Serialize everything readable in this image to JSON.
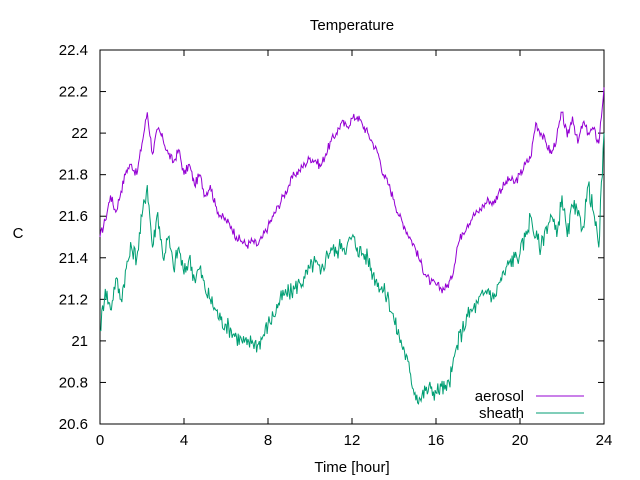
{
  "chart_data": {
    "type": "line",
    "title": "Temperature",
    "xlabel": "Time [hour]",
    "ylabel": "C",
    "xlim": [
      0,
      24
    ],
    "ylim": [
      20.6,
      22.4
    ],
    "xticks": [
      0,
      4,
      8,
      12,
      16,
      20,
      24
    ],
    "yticks": [
      20.6,
      20.8,
      21,
      21.2,
      21.4,
      21.6,
      21.8,
      22,
      22.2,
      22.4
    ],
    "grid": false,
    "legend_position": "bottom-right",
    "series": [
      {
        "name": "aerosol",
        "color": "#9400d3",
        "x": [
          0,
          0.25,
          0.5,
          0.75,
          1,
          1.25,
          1.5,
          1.75,
          2,
          2.25,
          2.5,
          2.75,
          3,
          3.25,
          3.5,
          3.75,
          4,
          4.25,
          4.5,
          4.75,
          5,
          5.25,
          5.5,
          5.75,
          6,
          6.25,
          6.5,
          6.75,
          7,
          7.25,
          7.5,
          7.75,
          8,
          8.25,
          8.5,
          8.75,
          9,
          9.25,
          9.5,
          9.75,
          10,
          10.25,
          10.5,
          10.75,
          11,
          11.25,
          11.5,
          11.75,
          12,
          12.25,
          12.5,
          12.75,
          13,
          13.25,
          13.5,
          13.75,
          14,
          14.25,
          14.5,
          14.75,
          15,
          15.25,
          15.5,
          15.75,
          16,
          16.25,
          16.5,
          16.75,
          17,
          17.25,
          17.5,
          17.75,
          18,
          18.25,
          18.5,
          18.75,
          19,
          19.25,
          19.5,
          19.75,
          20,
          20.25,
          20.5,
          20.75,
          21,
          21.25,
          21.5,
          21.75,
          22,
          22.25,
          22.5,
          22.75,
          23,
          23.25,
          23.5,
          23.75,
          24
        ],
        "y": [
          21.5,
          21.58,
          21.7,
          21.62,
          21.72,
          21.82,
          21.85,
          21.8,
          21.95,
          22.1,
          21.9,
          22.02,
          21.97,
          21.9,
          21.86,
          21.92,
          21.8,
          21.85,
          21.75,
          21.8,
          21.7,
          21.75,
          21.65,
          21.6,
          21.58,
          21.55,
          21.5,
          21.48,
          21.46,
          21.48,
          21.46,
          21.5,
          21.55,
          21.6,
          21.65,
          21.7,
          21.75,
          21.8,
          21.82,
          21.85,
          21.88,
          21.87,
          21.84,
          21.9,
          21.96,
          22.0,
          22.05,
          22.03,
          22.07,
          22.08,
          22.04,
          22.0,
          21.95,
          21.9,
          21.8,
          21.75,
          21.68,
          21.6,
          21.55,
          21.5,
          21.45,
          21.38,
          21.32,
          21.28,
          21.27,
          21.25,
          21.26,
          21.3,
          21.45,
          21.52,
          21.56,
          21.6,
          21.62,
          21.65,
          21.68,
          21.66,
          21.72,
          21.75,
          21.78,
          21.76,
          21.8,
          21.85,
          21.88,
          22.05,
          22.0,
          21.95,
          21.9,
          21.98,
          22.1,
          21.98,
          22.08,
          21.95,
          22.05,
          22.0,
          22.02,
          21.95,
          22.22
        ]
      },
      {
        "name": "sheath",
        "color": "#009e73",
        "x": [
          0,
          0.25,
          0.5,
          0.75,
          1,
          1.25,
          1.5,
          1.75,
          2,
          2.25,
          2.5,
          2.75,
          3,
          3.25,
          3.5,
          3.75,
          4,
          4.25,
          4.5,
          4.75,
          5,
          5.25,
          5.5,
          5.75,
          6,
          6.25,
          6.5,
          6.75,
          7,
          7.25,
          7.5,
          7.75,
          8,
          8.25,
          8.5,
          8.75,
          9,
          9.25,
          9.5,
          9.75,
          10,
          10.25,
          10.5,
          10.75,
          11,
          11.25,
          11.5,
          11.75,
          12,
          12.25,
          12.5,
          12.75,
          13,
          13.25,
          13.5,
          13.75,
          14,
          14.25,
          14.5,
          14.75,
          15,
          15.25,
          15.5,
          15.75,
          16,
          16.25,
          16.5,
          16.75,
          17,
          17.25,
          17.5,
          17.75,
          18,
          18.25,
          18.5,
          18.75,
          19,
          19.25,
          19.5,
          19.75,
          20,
          20.25,
          20.5,
          20.75,
          21,
          21.25,
          21.5,
          21.75,
          22,
          22.25,
          22.5,
          22.75,
          23,
          23.25,
          23.5,
          23.75,
          24
        ],
        "y": [
          21.05,
          21.25,
          21.15,
          21.3,
          21.2,
          21.35,
          21.45,
          21.4,
          21.6,
          21.75,
          21.45,
          21.62,
          21.4,
          21.5,
          21.35,
          21.45,
          21.32,
          21.4,
          21.3,
          21.35,
          21.25,
          21.2,
          21.15,
          21.1,
          21.08,
          21.05,
          21.02,
          21.0,
          20.98,
          21.0,
          20.98,
          21.02,
          21.08,
          21.12,
          21.18,
          21.22,
          21.23,
          21.25,
          21.28,
          21.3,
          21.35,
          21.38,
          21.32,
          21.4,
          21.45,
          21.42,
          21.47,
          21.45,
          21.5,
          21.45,
          21.42,
          21.4,
          21.32,
          21.28,
          21.24,
          21.2,
          21.1,
          21.02,
          20.95,
          20.85,
          20.75,
          20.72,
          20.76,
          20.77,
          20.75,
          20.78,
          20.76,
          20.85,
          20.98,
          21.05,
          21.12,
          21.15,
          21.18,
          21.22,
          21.25,
          21.2,
          21.28,
          21.32,
          21.38,
          21.4,
          21.42,
          21.5,
          21.6,
          21.5,
          21.45,
          21.55,
          21.6,
          21.5,
          21.7,
          21.5,
          21.65,
          21.6,
          21.55,
          21.75,
          21.62,
          21.45,
          22.0
        ]
      }
    ]
  }
}
